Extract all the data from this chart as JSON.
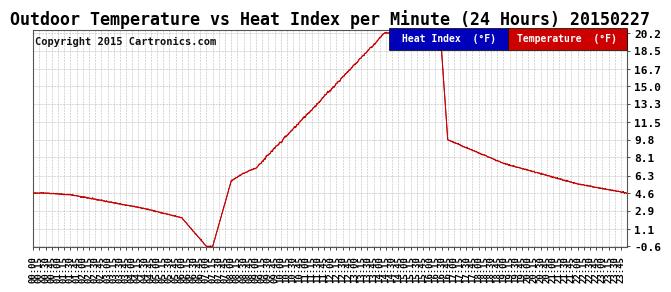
{
  "title": "Outdoor Temperature vs Heat Index per Minute (24 Hours) 20150227",
  "copyright": "Copyright 2015 Cartronics.com",
  "yticks": [
    -0.6,
    1.1,
    2.9,
    4.6,
    6.3,
    8.1,
    9.8,
    11.5,
    13.3,
    15.0,
    16.7,
    18.5,
    20.2
  ],
  "ylim_min": -0.6,
  "ylim_max": 20.2,
  "background_color": "#ffffff",
  "grid_color": "#aaaaaa",
  "line_color": "#cc0000",
  "legend_heat_bg": "#0000bb",
  "legend_temp_bg": "#cc0000",
  "title_fontsize": 12,
  "copyright_fontsize": 7.5,
  "tick_fontsize": 8
}
